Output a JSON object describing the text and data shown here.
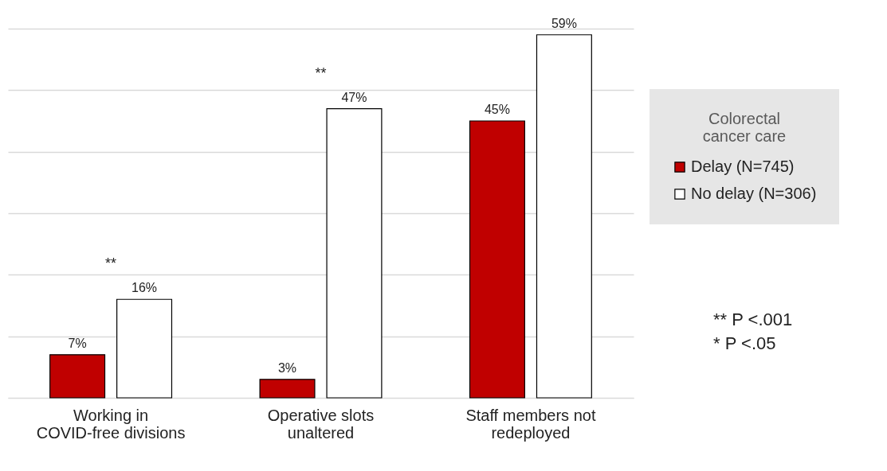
{
  "chart_data": {
    "type": "bar",
    "categories": [
      "Working in COVID-free divisions",
      "Operative slots unaltered",
      "Staff members not redeployed"
    ],
    "series": [
      {
        "name": "Delay (N=745)",
        "color": "#c00000",
        "values": [
          7,
          3,
          45
        ],
        "value_labels": [
          "7%",
          "3%",
          "45%"
        ]
      },
      {
        "name": "No delay (N=306)",
        "color": "#ffffff",
        "values": [
          16,
          47,
          59
        ],
        "value_labels": [
          "16%",
          "47%",
          "59%"
        ]
      }
    ],
    "legend_title": "Colorectal cancer care",
    "legend": "right",
    "ylim": [
      0,
      60
    ],
    "yticks": [
      {
        "value": 0,
        "label": null
      },
      {
        "value": 10,
        "label": null
      },
      {
        "value": 20,
        "label": null
      },
      {
        "value": 30,
        "label": null
      },
      {
        "value": 40,
        "label": null
      },
      {
        "value": 50,
        "label": null
      },
      {
        "value": 60,
        "label": null
      }
    ],
    "tick_labels": "x",
    "grid": "y",
    "annotations": [
      "**",
      "**",
      "** P <.001",
      "* P <.05"
    ]
  }
}
